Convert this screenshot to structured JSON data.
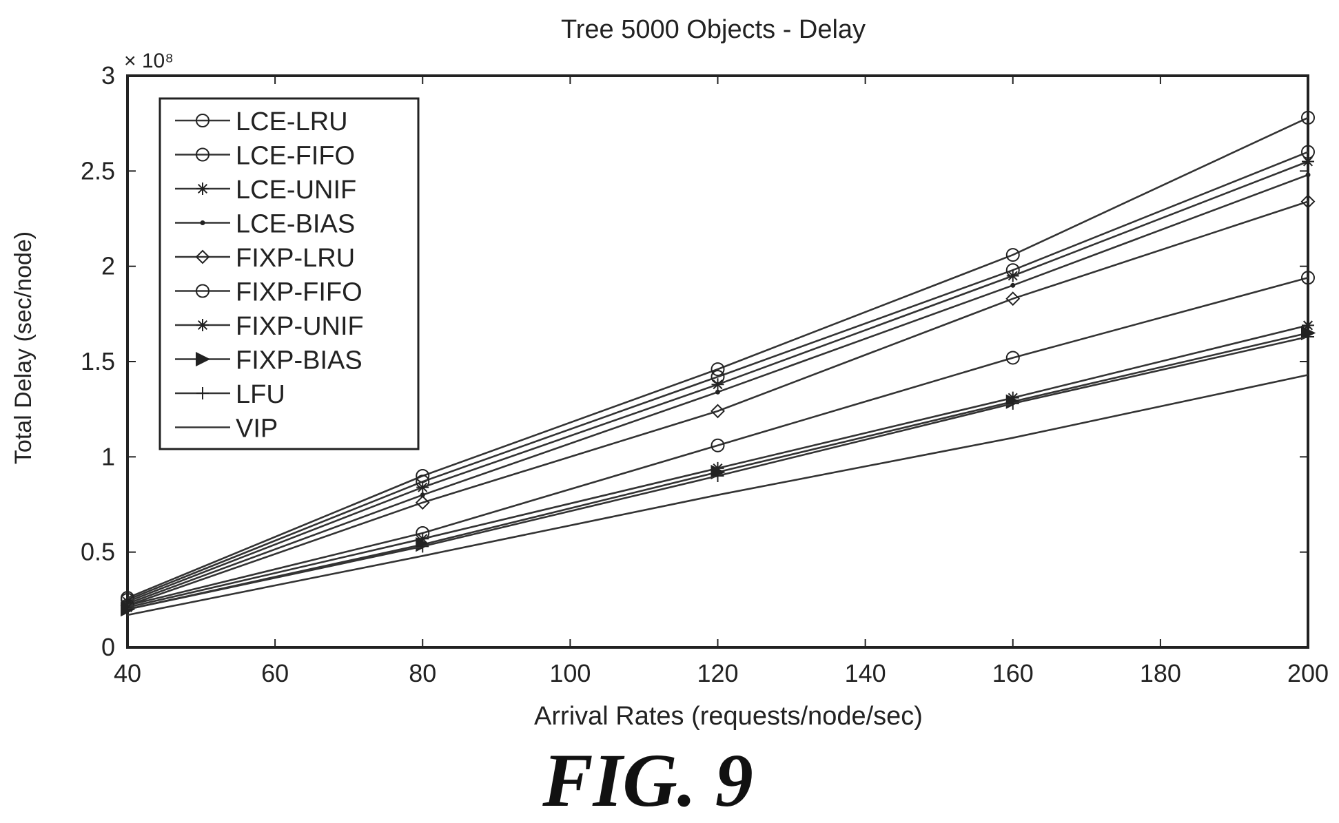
{
  "figure_caption": "FIG. 9",
  "chart_data": {
    "type": "line",
    "title": "Tree 5000 Objects - Delay",
    "xlabel": "Arrival Rates (requests/node/sec)",
    "ylabel": "Total Delay (sec/node)",
    "y_multiplier": "× 10⁸",
    "xlim": [
      40,
      200
    ],
    "ylim": [
      0,
      3
    ],
    "x_ticks": [
      40,
      60,
      80,
      100,
      120,
      140,
      160,
      180,
      200
    ],
    "y_ticks": [
      0,
      0.5,
      1,
      1.5,
      2,
      2.5,
      3
    ],
    "y_tick_labels": [
      "0",
      "0.5",
      "1",
      "1.5",
      "2",
      "2.5",
      "3"
    ],
    "grid": false,
    "legend_position": "top-left",
    "x": [
      40,
      80,
      120,
      160,
      200
    ],
    "series": [
      {
        "name": "LCE-LRU",
        "marker": "circle",
        "values": [
          0.26,
          0.9,
          1.46,
          2.06,
          2.78
        ]
      },
      {
        "name": "LCE-FIFO",
        "marker": "circle",
        "values": [
          0.25,
          0.87,
          1.42,
          1.98,
          2.6
        ]
      },
      {
        "name": "LCE-UNIF",
        "marker": "star",
        "values": [
          0.24,
          0.84,
          1.38,
          1.95,
          2.55
        ]
      },
      {
        "name": "LCE-BIAS",
        "marker": "dot",
        "values": [
          0.23,
          0.8,
          1.34,
          1.9,
          2.48
        ]
      },
      {
        "name": "FIXP-LRU",
        "marker": "diamond",
        "values": [
          0.22,
          0.76,
          1.24,
          1.83,
          2.34
        ]
      },
      {
        "name": "FIXP-FIFO",
        "marker": "circle",
        "values": [
          0.22,
          0.6,
          1.06,
          1.52,
          1.94
        ]
      },
      {
        "name": "FIXP-UNIF",
        "marker": "star",
        "values": [
          0.21,
          0.57,
          0.94,
          1.31,
          1.69
        ]
      },
      {
        "name": "FIXP-BIAS",
        "marker": "triangle-right",
        "values": [
          0.2,
          0.54,
          0.92,
          1.29,
          1.65
        ]
      },
      {
        "name": "LFU",
        "marker": "plus",
        "values": [
          0.2,
          0.53,
          0.9,
          1.28,
          1.63
        ]
      },
      {
        "name": "VIP",
        "marker": "none",
        "values": [
          0.17,
          0.48,
          0.8,
          1.1,
          1.43
        ]
      }
    ]
  }
}
